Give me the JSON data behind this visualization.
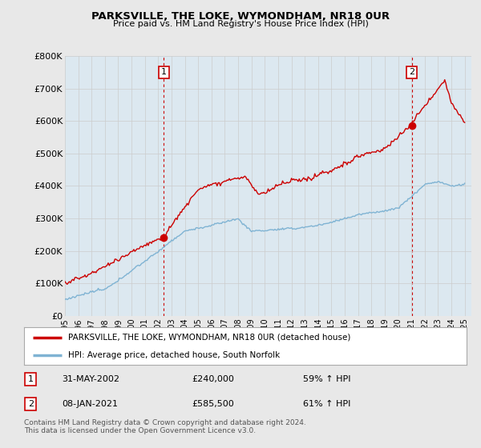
{
  "title": "PARKSVILLE, THE LOKE, WYMONDHAM, NR18 0UR",
  "subtitle": "Price paid vs. HM Land Registry's House Price Index (HPI)",
  "ylim": [
    0,
    800000
  ],
  "yticks": [
    0,
    100000,
    200000,
    300000,
    400000,
    500000,
    600000,
    700000,
    800000
  ],
  "ytick_labels": [
    "£0",
    "£100K",
    "£200K",
    "£300K",
    "£400K",
    "£500K",
    "£600K",
    "£700K",
    "£800K"
  ],
  "red_color": "#cc0000",
  "blue_color": "#7fb3d3",
  "marker1_date": 2002.42,
  "marker1_value": 240000,
  "marker2_date": 2021.03,
  "marker2_value": 585500,
  "legend_red": "PARKSVILLE, THE LOKE, WYMONDHAM, NR18 0UR (detached house)",
  "legend_blue": "HPI: Average price, detached house, South Norfolk",
  "annotation1": [
    "1",
    "31-MAY-2002",
    "£240,000",
    "59% ↑ HPI"
  ],
  "annotation2": [
    "2",
    "08-JAN-2021",
    "£585,500",
    "61% ↑ HPI"
  ],
  "footnote": "Contains HM Land Registry data © Crown copyright and database right 2024.\nThis data is licensed under the Open Government Licence v3.0.",
  "bg_color": "#e8e8e8",
  "plot_bg": "#dce8f0"
}
